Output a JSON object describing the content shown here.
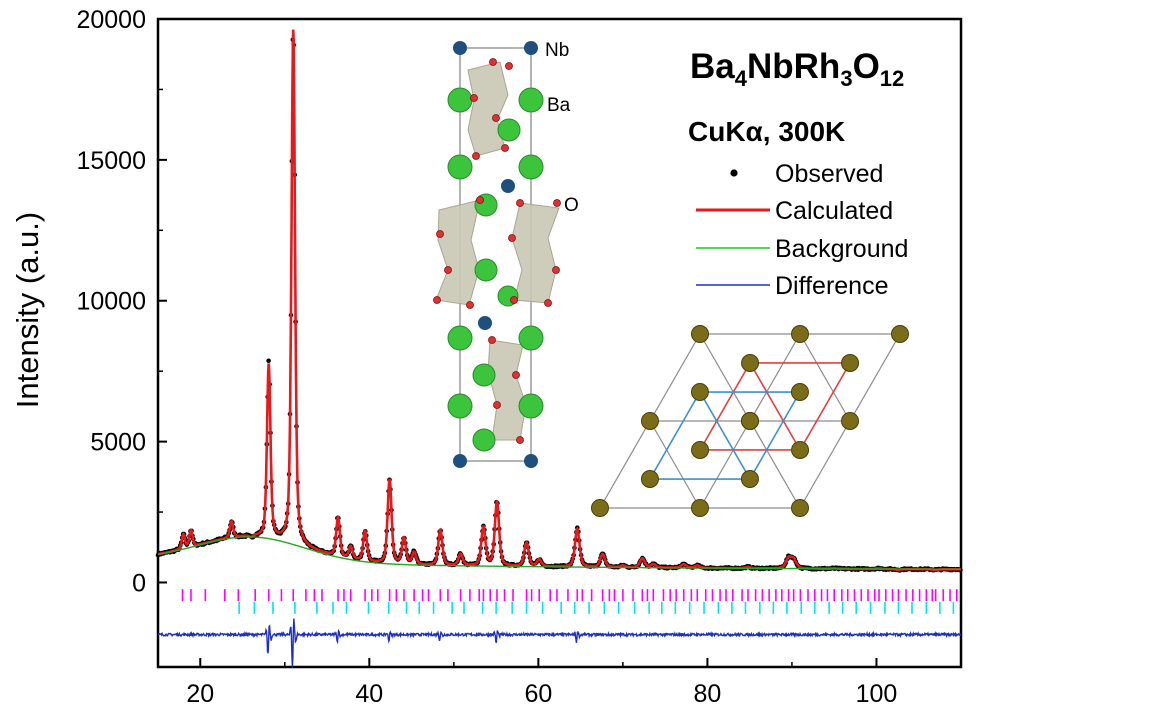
{
  "chart_data": {
    "type": "line",
    "title": "",
    "xlabel": "",
    "ylabel": "Intensity (a.u.)",
    "xlim": [
      15,
      110
    ],
    "ylim": [
      -3000,
      20000
    ],
    "xticks": [
      20,
      40,
      60,
      80,
      100
    ],
    "yticks": [
      0,
      5000,
      10000,
      15000,
      20000
    ],
    "compound": {
      "base": "Ba",
      "s1": "4",
      "mid1": "NbRh",
      "s2": "3",
      "mid2": "O",
      "s3": "12"
    },
    "conditions": "CuKα, 300K",
    "legend_position": "top-right",
    "series": [
      {
        "name": "Observed",
        "style": "black dots",
        "color": "#000000"
      },
      {
        "name": "Calculated",
        "style": "solid line",
        "color": "#e41a1c"
      },
      {
        "name": "Background",
        "style": "solid line",
        "color": "#22c322"
      },
      {
        "name": "Difference",
        "style": "solid line",
        "color": "#1f2fbf"
      }
    ],
    "peaks": [
      {
        "x": 18.0,
        "y": 1700
      },
      {
        "x": 18.9,
        "y": 1850
      },
      {
        "x": 23.7,
        "y": 2150
      },
      {
        "x": 26.0,
        "y": 1550
      },
      {
        "x": 28.1,
        "y": 7700
      },
      {
        "x": 31.0,
        "y": 19600
      },
      {
        "x": 36.3,
        "y": 2300
      },
      {
        "x": 37.8,
        "y": 1250
      },
      {
        "x": 39.5,
        "y": 1800
      },
      {
        "x": 42.4,
        "y": 3650
      },
      {
        "x": 44.1,
        "y": 1550
      },
      {
        "x": 45.3,
        "y": 1050
      },
      {
        "x": 48.4,
        "y": 1850
      },
      {
        "x": 50.8,
        "y": 1000
      },
      {
        "x": 53.5,
        "y": 1950
      },
      {
        "x": 55.1,
        "y": 2850
      },
      {
        "x": 58.6,
        "y": 1400
      },
      {
        "x": 60.1,
        "y": 800
      },
      {
        "x": 64.6,
        "y": 1900
      },
      {
        "x": 67.6,
        "y": 1000
      },
      {
        "x": 70.0,
        "y": 600
      },
      {
        "x": 72.3,
        "y": 850
      },
      {
        "x": 73.6,
        "y": 650
      },
      {
        "x": 77.2,
        "y": 650
      },
      {
        "x": 78.8,
        "y": 600
      },
      {
        "x": 84.8,
        "y": 550
      },
      {
        "x": 89.6,
        "y": 850
      },
      {
        "x": 90.2,
        "y": 800
      },
      {
        "x": 95.0,
        "y": 500
      },
      {
        "x": 100.3,
        "y": 500
      },
      {
        "x": 102.6,
        "y": 450
      },
      {
        "x": 107.0,
        "y": 450
      }
    ],
    "bragg_rows": [
      {
        "phase": "magenta",
        "color": "#ff00ff",
        "y": -450,
        "positions": [
          17.9,
          18.9,
          20.6,
          22.9,
          24.5,
          26.5,
          28.1,
          29.6,
          31.0,
          32.5,
          33.5,
          34.4,
          36.3,
          37.0,
          37.8,
          39.5,
          40.3,
          41.0,
          42.4,
          43.2,
          44.1,
          45.3,
          46.3,
          47.0,
          48.4,
          49.3,
          50.8,
          51.9,
          53.0,
          53.5,
          54.3,
          55.1,
          56.0,
          57.0,
          58.6,
          59.2,
          60.1,
          61.4,
          62.2,
          63.5,
          64.6,
          65.2,
          66.3,
          67.6,
          68.4,
          69.0,
          70.0,
          71.2,
          72.3,
          72.9,
          73.6,
          74.8,
          75.6,
          76.3,
          77.2,
          78.1,
          78.8,
          79.8,
          80.6,
          81.5,
          82.2,
          83.0,
          84.1,
          84.8,
          85.7,
          86.5,
          87.3,
          88.1,
          88.8,
          89.6,
          90.2,
          91.0,
          91.9,
          92.7,
          93.5,
          94.2,
          95.0,
          95.9,
          96.6,
          97.4,
          98.2,
          99.0,
          99.8,
          100.3,
          101.1,
          101.9,
          102.6,
          103.5,
          104.3,
          105.1,
          105.9,
          106.6,
          107.0,
          107.9,
          108.7,
          109.5
        ]
      },
      {
        "phase": "cyan",
        "color": "#00e5ee",
        "y": -900,
        "positions": [
          24.6,
          26.4,
          28.6,
          31.2,
          33.8,
          35.7,
          37.3,
          39.9,
          42.3,
          44.4,
          45.9,
          47.6,
          49.8,
          51.2,
          53.4,
          55.0,
          56.9,
          58.6,
          60.5,
          62.7,
          64.3,
          66.0,
          67.8,
          69.5,
          71.4,
          73.1,
          74.6,
          76.2,
          77.9,
          79.6,
          81.3,
          82.9,
          84.5,
          86.2,
          87.8,
          89.4,
          91.1,
          92.7,
          94.4,
          96.0,
          97.6,
          99.3,
          101.0,
          102.6,
          104.2,
          105.9,
          107.5,
          109.1
        ]
      }
    ],
    "difference_offset": -1850,
    "diff_spikes": [
      {
        "x": 28.1,
        "amp": 700
      },
      {
        "x": 31.0,
        "amp": 1150
      },
      {
        "x": 36.3,
        "amp": 250
      },
      {
        "x": 42.4,
        "amp": 220
      },
      {
        "x": 48.4,
        "amp": 180
      },
      {
        "x": 55.1,
        "amp": 300
      },
      {
        "x": 64.6,
        "amp": 250
      }
    ]
  },
  "structure_inset": {
    "labels": {
      "nb": "Nb",
      "ba": "Ba",
      "o": "O"
    }
  },
  "lattice_inset": {}
}
